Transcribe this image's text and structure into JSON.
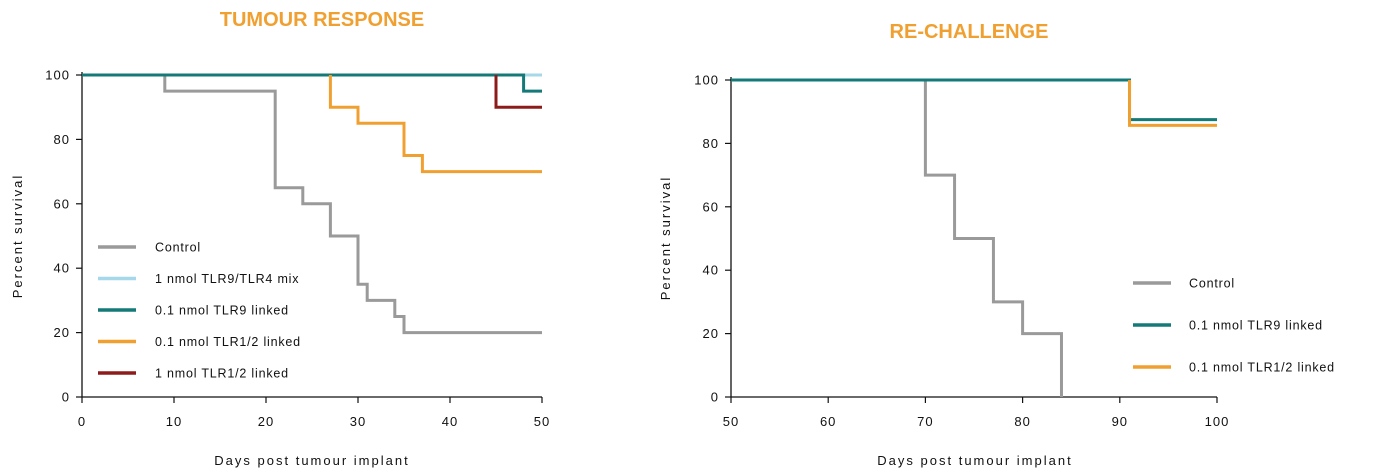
{
  "chart_data": [
    {
      "type": "line",
      "title": "TUMOUR RESPONSE",
      "title_color": "#f0a030",
      "xlabel": "Days post tumour implant",
      "ylabel": "Percent survival",
      "xlim": [
        0,
        50
      ],
      "ylim": [
        0,
        100
      ],
      "xticks": [
        0,
        10,
        20,
        30,
        40,
        50
      ],
      "yticks": [
        0,
        20,
        40,
        60,
        80,
        100
      ],
      "grid": false,
      "legend_position": "left",
      "series": [
        {
          "name": "Control",
          "color": "#9a9a9a",
          "x": [
            0,
            9,
            21,
            24,
            27,
            30,
            31,
            34,
            35,
            50
          ],
          "y": [
            100,
            95,
            65,
            60,
            50,
            35,
            30,
            25,
            20,
            20
          ]
        },
        {
          "name": "1 nmol TLR9/TLR4 mix",
          "color": "#a6d8ea",
          "x": [
            0,
            50
          ],
          "y": [
            100,
            100
          ]
        },
        {
          "name": "0.1 nmol TLR9 linked",
          "color": "#137a78",
          "x": [
            0,
            48,
            50
          ],
          "y": [
            100,
            95,
            95
          ]
        },
        {
          "name": "0.1 nmol TLR1/2 linked",
          "color": "#f0a030",
          "x": [
            27,
            30,
            35,
            37,
            50
          ],
          "y": [
            90,
            85,
            75,
            70,
            70
          ],
          "start_y": 100
        },
        {
          "name": "1 nmol TLR1/2 linked",
          "color": "#8e1b1b",
          "x": [
            45,
            50
          ],
          "y": [
            90,
            90
          ],
          "start_y": 100
        }
      ]
    },
    {
      "type": "line",
      "title": "RE-CHALLENGE",
      "title_color": "#f0a030",
      "xlabel": "Days post tumour implant",
      "ylabel": "Percent survival",
      "xlim": [
        50,
        100
      ],
      "ylim": [
        0,
        100
      ],
      "xticks": [
        50,
        60,
        70,
        80,
        90,
        100
      ],
      "yticks": [
        0,
        20,
        40,
        60,
        80,
        100
      ],
      "grid": false,
      "legend_position": "bottom-right",
      "series": [
        {
          "name": "Control",
          "color": "#9a9a9a",
          "x": [
            50,
            70,
            73,
            77,
            80,
            84
          ],
          "y": [
            100,
            70,
            50,
            30,
            20,
            0
          ]
        },
        {
          "name": "0.1 nmol TLR9 linked",
          "color": "#137a78",
          "x": [
            50,
            91,
            100
          ],
          "y": [
            100,
            87.5,
            87.5
          ]
        },
        {
          "name": "0.1 nmol TLR1/2 linked",
          "color": "#f0a030",
          "x": [
            91,
            100
          ],
          "y": [
            85.7,
            85.7
          ],
          "start_y": 100
        }
      ]
    }
  ]
}
